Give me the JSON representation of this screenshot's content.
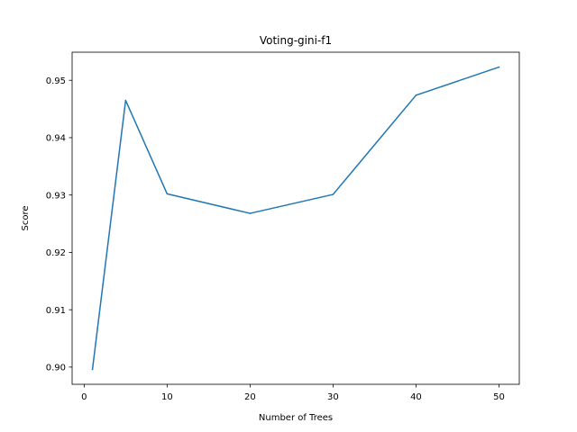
{
  "chart_data": {
    "type": "line",
    "title": "Voting-gini-f1",
    "xlabel": "Number of Trees",
    "ylabel": "Score",
    "x": [
      1,
      5,
      10,
      20,
      30,
      40,
      50
    ],
    "series": [
      {
        "values": [
          0.8996,
          0.9465,
          0.9302,
          0.9268,
          0.9301,
          0.9474,
          0.9523
        ]
      }
    ],
    "xlim": [
      -1.45,
      52.45
    ],
    "ylim": [
      0.897,
      0.9549
    ],
    "xticks": [
      0,
      10,
      20,
      30,
      40,
      50
    ],
    "xtick_labels": [
      "0",
      "10",
      "20",
      "30",
      "40",
      "50"
    ],
    "yticks": [
      0.9,
      0.91,
      0.92,
      0.93,
      0.94,
      0.95
    ],
    "ytick_labels": [
      "0.90",
      "0.91",
      "0.92",
      "0.93",
      "0.94",
      "0.95"
    ],
    "grid": false,
    "line_color": "#1f77b4"
  }
}
